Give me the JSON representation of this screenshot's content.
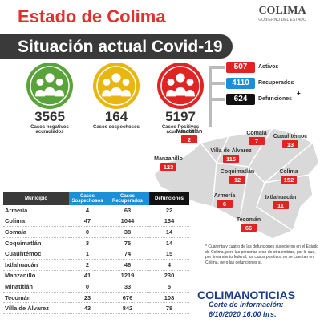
{
  "header": {
    "title": "Estado de Colima",
    "subtitle": "Situación actual Covid-19",
    "logo": "COLIMA",
    "logo_subtitle": "GOBIERNO DEL ESTADO"
  },
  "stats": [
    {
      "value": "3565",
      "label": "Casos negativos acumulados"
    },
    {
      "value": "164",
      "label": "Casos sospechosos"
    },
    {
      "value": "5197",
      "label": "Casos Positivos acumulados"
    }
  ],
  "summary": [
    {
      "value": "507",
      "label": "Activos"
    },
    {
      "value": "4110",
      "label": "Recuperados"
    },
    {
      "value": "624",
      "label": "Defunciones"
    }
  ],
  "summary_mark": "+",
  "map": [
    {
      "name": "Minatitlán",
      "value": "2"
    },
    {
      "name": "Comala",
      "value": "7"
    },
    {
      "name": "Villa de Álvarez",
      "value": "115"
    },
    {
      "name": "Cuauhtémoc",
      "value": "13"
    },
    {
      "name": "Coquimatlán",
      "value": "12"
    },
    {
      "name": "Manzanillo",
      "value": "123"
    },
    {
      "name": "Colima",
      "value": "152"
    },
    {
      "name": "Armería",
      "value": "6"
    },
    {
      "name": "Ixtlahuacán",
      "value": "11"
    },
    {
      "name": "Tecomán",
      "value": "66"
    }
  ],
  "table": {
    "headers": [
      "Municipio",
      "Casos Sospechosos",
      "Casos Recuperados",
      "Defunciones"
    ],
    "rows": [
      [
        "Armería",
        "4",
        "63",
        "22"
      ],
      [
        "Colima",
        "47",
        "1044",
        "134"
      ],
      [
        "Comala",
        "0",
        "38",
        "14"
      ],
      [
        "Coquimatlán",
        "3",
        "75",
        "14"
      ],
      [
        "Cuauhtémoc",
        "1",
        "74",
        "15"
      ],
      [
        "Ixtlahuacán",
        "2",
        "46",
        "4"
      ],
      [
        "Manzanillo",
        "41",
        "1219",
        "230"
      ],
      [
        "Minatitlán",
        "0",
        "33",
        "5"
      ],
      [
        "Tecomán",
        "23",
        "676",
        "108"
      ],
      [
        "Villa de Álvarez",
        "43",
        "842",
        "78"
      ]
    ]
  },
  "note": "* Cuarenta y cuatro de las defunciones sucedieron en el Estado de Colima, pero las personas eran de otra entidad, por lo que, por lineamiento federal, los casos positivos no se cuentan en Colima, pero las defunciones sí.",
  "brand": "COLIMANOTICIAS",
  "cutoff_label": "Corte de información:",
  "cutoff_date": "6/10/2020 16:00 hrs."
}
